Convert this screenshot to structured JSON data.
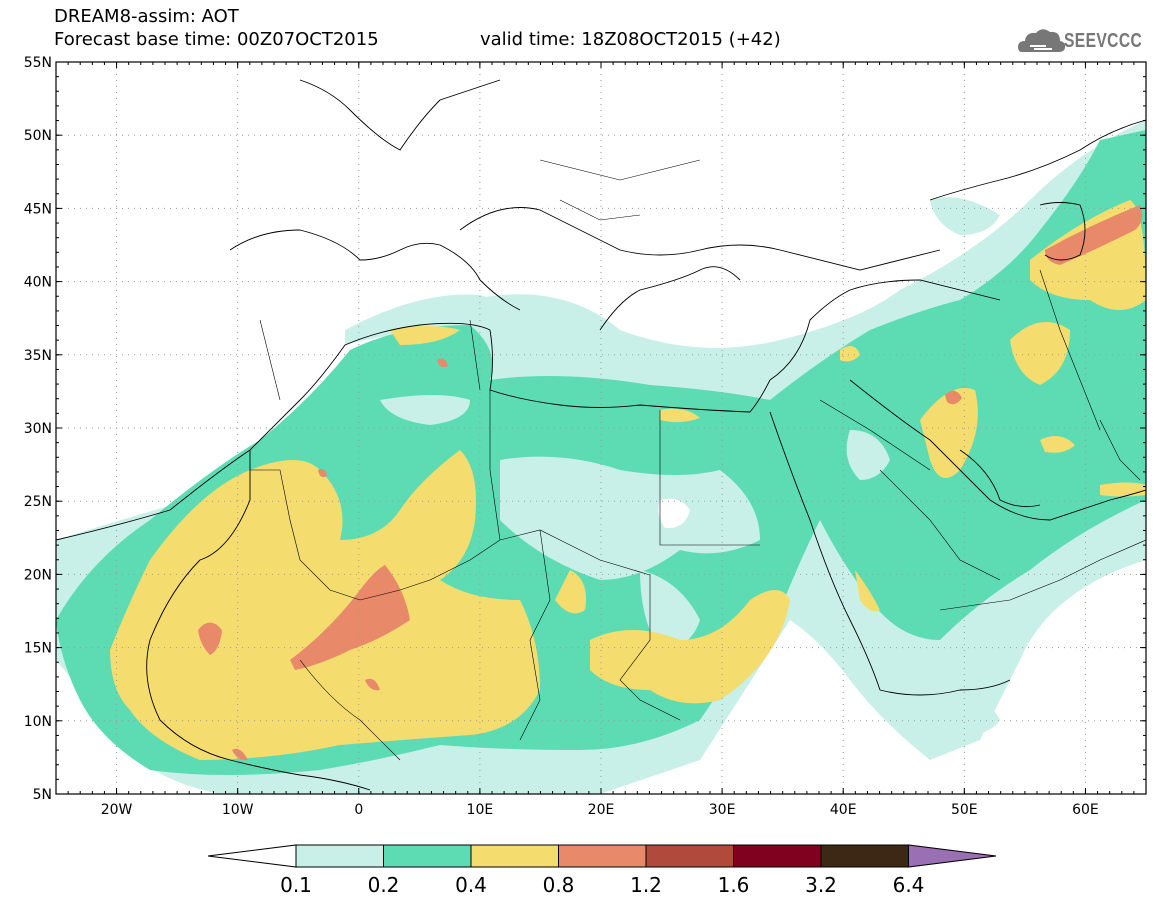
{
  "header": {
    "line1": "DREAM8-assim: AOT",
    "line2": "Forecast base time: 00Z07OCT2015",
    "valid": "valid time: 18Z08OCT2015 (+42)",
    "logo_text": "SEEVCCC"
  },
  "map": {
    "lon_range": [
      -25,
      65
    ],
    "lat_range": [
      5,
      55
    ],
    "lat_ticks": [
      {
        "lat": 55,
        "label": "55N"
      },
      {
        "lat": 50,
        "label": "50N"
      },
      {
        "lat": 45,
        "label": "45N"
      },
      {
        "lat": 40,
        "label": "40N"
      },
      {
        "lat": 35,
        "label": "35N"
      },
      {
        "lat": 30,
        "label": "30N"
      },
      {
        "lat": 25,
        "label": "25N"
      },
      {
        "lat": 20,
        "label": "20N"
      },
      {
        "lat": 15,
        "label": "15N"
      },
      {
        "lat": 10,
        "label": "10N"
      },
      {
        "lat": 5,
        "label": "5N"
      }
    ],
    "lon_ticks": [
      {
        "lon": -20,
        "label": "20W"
      },
      {
        "lon": -10,
        "label": "10W"
      },
      {
        "lon": 0,
        "label": "0"
      },
      {
        "lon": 10,
        "label": "10E"
      },
      {
        "lon": 20,
        "label": "20E"
      },
      {
        "lon": 30,
        "label": "30E"
      },
      {
        "lon": 40,
        "label": "40E"
      },
      {
        "lon": 50,
        "label": "50E"
      },
      {
        "lon": 60,
        "label": "60E"
      }
    ],
    "grid": true
  },
  "colorbar": {
    "labels": [
      "0.1",
      "0.2",
      "0.4",
      "0.8",
      "1.2",
      "1.6",
      "3.2",
      "6.4"
    ],
    "colors": [
      "#ffffff",
      "#c8f0e8",
      "#5ddcb4",
      "#f5dc6e",
      "#e8896a",
      "#b04a3c",
      "#800020",
      "#3c2814",
      "#9a6fb4"
    ]
  }
}
